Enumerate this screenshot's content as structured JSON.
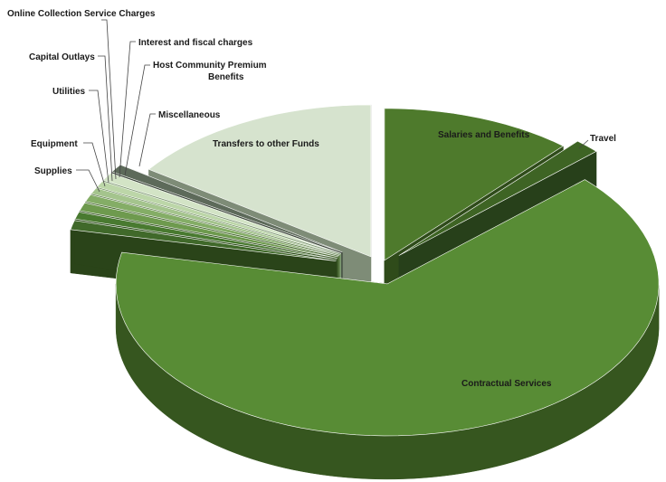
{
  "chart_data": {
    "type": "pie",
    "style": "3d-exploded",
    "title": "",
    "legend": "none",
    "unit": "percent of total (estimated)",
    "slices": [
      {
        "label": "Salaries and Benefits",
        "value": 10.5,
        "color": "#4e7a2c",
        "side_color": "#2f4b1a"
      },
      {
        "label": "Travel",
        "value": 1.4,
        "color": "#3e6424",
        "side_color": "#27401a"
      },
      {
        "label": "Contractual Services",
        "value": 60.0,
        "color": "#588c35",
        "side_color": "#36561f"
      },
      {
        "label": "Supplies",
        "value": 0.9,
        "color": "#40692a",
        "side_color": "#2a4419"
      },
      {
        "label": "Equipment",
        "value": 0.7,
        "color": "#497a30",
        "side_color": "#2e4d1c"
      },
      {
        "label": "Utilities",
        "value": 0.8,
        "color": "#6e9a4e",
        "side_color": "#3d5a2a"
      },
      {
        "label": "Capital Outlays",
        "value": 0.7,
        "color": "#84ad66",
        "side_color": "#4a6b33"
      },
      {
        "label": "Online Collection Service Charges",
        "value": 0.6,
        "color": "#a4c48d",
        "side_color": "#5b7a46"
      },
      {
        "label": "Interest and fiscal charges",
        "value": 0.6,
        "color": "#bcd6a8",
        "side_color": "#6b8a58"
      },
      {
        "label": "Host Community Premium Benefits",
        "value": 0.8,
        "color": "#d3e4c6",
        "side_color": "#7f9973"
      },
      {
        "label": "Miscellaneous",
        "value": 0.8,
        "color": "#5d6a5a",
        "side_color": "#3e473c"
      },
      {
        "label": "Transfers to other Funds",
        "value": 14.0,
        "color": "#d6e3ce",
        "side_color": "#7e8c77"
      }
    ]
  },
  "labels": {
    "salaries": "Salaries and Benefits",
    "travel": "Travel",
    "contractual": "Contractual Services",
    "transfers": "Transfers to other Funds",
    "misc": "Miscellaneous",
    "host_line1": "Host Community Premium",
    "host_line2": "Benefits",
    "interest": "Interest and fiscal charges",
    "online": "Online Collection Service Charges",
    "capital": "Capital Outlays",
    "utilities": "Utilities",
    "equipment": "Equipment",
    "supplies": "Supplies"
  }
}
